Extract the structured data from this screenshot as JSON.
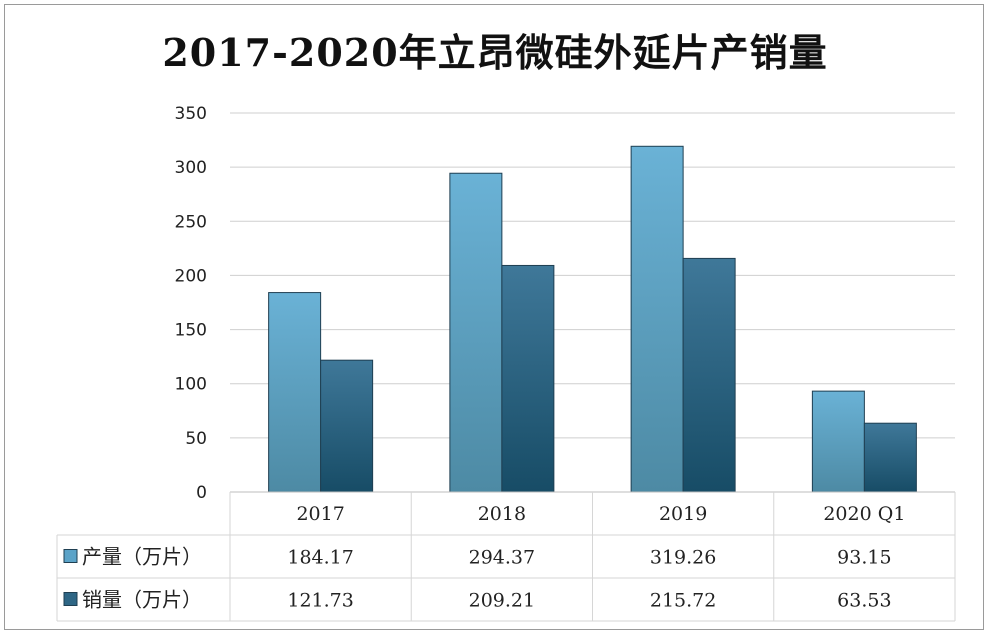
{
  "chart_data": {
    "type": "bar",
    "title": "2017-2020年立昂微硅外延片产销量",
    "categories": [
      "2017",
      "2018",
      "2019",
      "2020 Q1"
    ],
    "series": [
      {
        "name": "产量（万片）",
        "values": [
          184.17,
          294.37,
          319.26,
          93.15
        ],
        "color": "#5ba3c8"
      },
      {
        "name": "销量（万片）",
        "values": [
          121.73,
          209.21,
          215.72,
          63.53
        ],
        "color": "#2e6685"
      }
    ],
    "data_labels": {
      "产量": [
        "184.17",
        "294.37",
        "319.26",
        "93.15"
      ],
      "销量": [
        "121.73",
        "209.21",
        "215.72",
        "63.53"
      ]
    },
    "y_ticks": [
      "0",
      "50",
      "100",
      "150",
      "200",
      "250",
      "300",
      "350"
    ],
    "ylim": [
      0,
      350
    ],
    "grid": true,
    "legend": "data-table"
  }
}
